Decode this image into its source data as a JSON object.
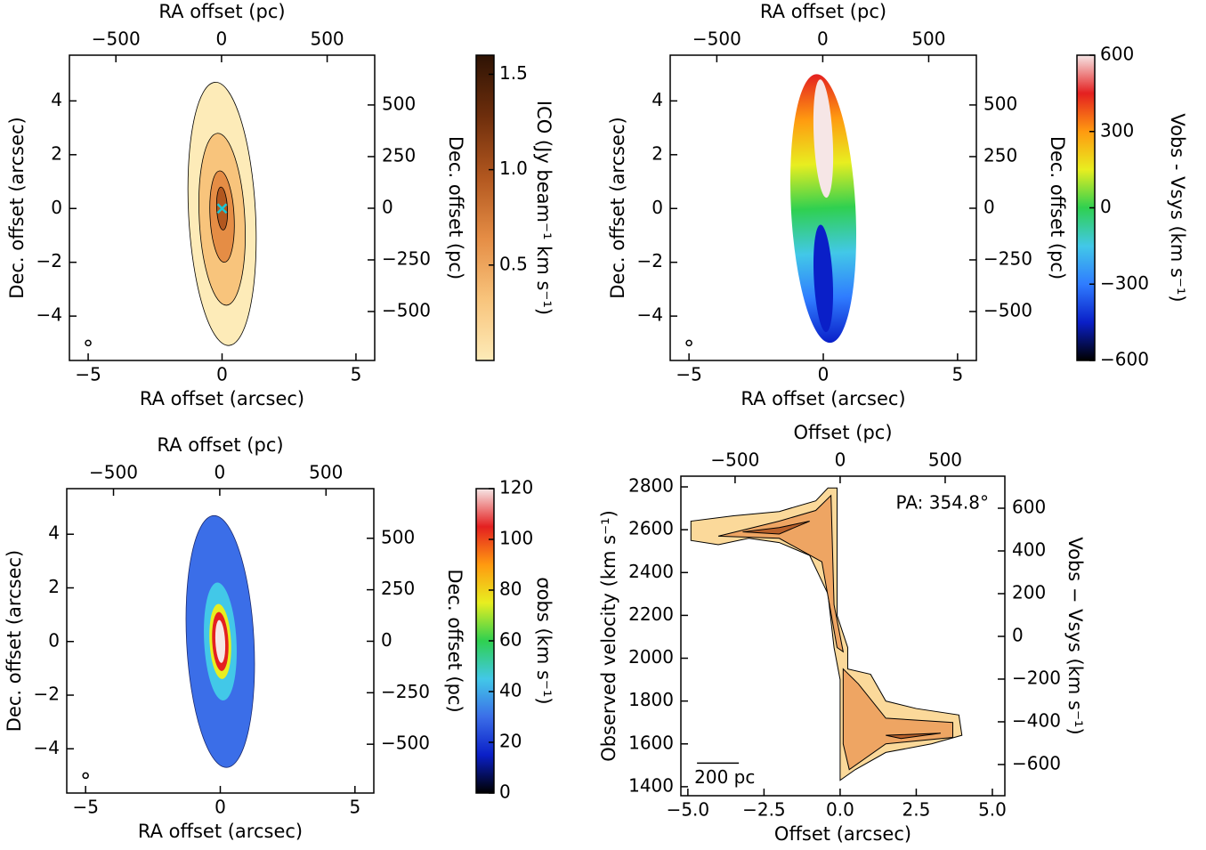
{
  "chart_data": [
    {
      "type": "intensity",
      "xlabel": "RA offset (arcsec)",
      "xlim": [
        -5.7,
        5.7
      ],
      "xticks": [
        {
          "value": -5,
          "label": "−5"
        },
        0,
        5
      ],
      "x2label": "RA offset (pc)",
      "x2lim": [
        -720,
        725
      ],
      "x2ticks": [
        {
          "value": -500,
          "label": "−500"
        },
        0,
        500
      ],
      "ylabel": "Dec. offset (arcsec)",
      "ylim": [
        -5.65,
        5.7
      ],
      "yticks": [
        {
          "value": -4,
          "label": "−4"
        },
        {
          "value": -2,
          "label": "−2"
        },
        0,
        2,
        4
      ],
      "y2label": "Dec. offset (pc)",
      "y2lim": [
        -737,
        741
      ],
      "y2ticks": [
        {
          "value": -500,
          "label": "−500"
        },
        {
          "value": -250,
          "label": "−250"
        },
        0,
        250,
        500
      ],
      "colorbar": {
        "label": "ICO (Jy beam⁻¹ km s⁻¹)",
        "lim": [
          0,
          1.6
        ],
        "ticks": [
          0.5,
          {
            "value": 1,
            "label": "1.0"
          },
          1.5
        ],
        "colors": [
          "#fdebb8",
          "#f8c47c",
          "#e58d45",
          "#b2571f",
          "#6e2e0c",
          "#2e1304"
        ]
      }
    },
    {
      "type": "velocity",
      "xlabel": "RA offset (arcsec)",
      "xlim": [
        -5.7,
        5.7
      ],
      "xticks": [
        {
          "value": -5,
          "label": "−5"
        },
        0,
        5
      ],
      "x2label": "RA offset (pc)",
      "x2lim": [
        -720,
        725
      ],
      "x2ticks": [
        {
          "value": -500,
          "label": "−500"
        },
        0,
        500
      ],
      "ylabel": "Dec. offset (arcsec)",
      "ylim": [
        -5.65,
        5.7
      ],
      "yticks": [
        {
          "value": -4,
          "label": "−4"
        },
        {
          "value": -2,
          "label": "−2"
        },
        0,
        2,
        4
      ],
      "y2label": "Dec. offset (pc)",
      "y2lim": [
        -737,
        741
      ],
      "y2ticks": [
        {
          "value": -500,
          "label": "−500"
        },
        {
          "value": -250,
          "label": "−250"
        },
        0,
        250,
        500
      ],
      "colorbar": {
        "label": "Vobs - Vsys (km s⁻¹)",
        "lim": [
          -600,
          600
        ],
        "ticks": [
          {
            "value": -600,
            "label": "−600"
          },
          {
            "value": -300,
            "label": "−300"
          },
          0,
          300,
          600
        ],
        "colors": [
          "#000000",
          "#0a1fc8",
          "#2f7cff",
          "#42c8e8",
          "#2fd050",
          "#e8ee20",
          "#ff9a10",
          "#e42020",
          "#f6e6e6"
        ]
      }
    },
    {
      "type": "dispersion",
      "xlabel": "RA offset (arcsec)",
      "xlim": [
        -5.7,
        5.7
      ],
      "xticks": [
        {
          "value": -5,
          "label": "−5"
        },
        0,
        5
      ],
      "x2label": "RA offset (pc)",
      "x2lim": [
        -720,
        725
      ],
      "x2ticks": [
        {
          "value": -500,
          "label": "−500"
        },
        0,
        500
      ],
      "ylabel": "Dec. offset (arcsec)",
      "ylim": [
        -5.65,
        5.7
      ],
      "yticks": [
        {
          "value": -4,
          "label": "−4"
        },
        {
          "value": -2,
          "label": "−2"
        },
        0,
        2,
        4
      ],
      "y2label": "Dec. offset (pc)",
      "y2lim": [
        -737,
        741
      ],
      "y2ticks": [
        {
          "value": -500,
          "label": "−500"
        },
        {
          "value": -250,
          "label": "−250"
        },
        0,
        250,
        500
      ],
      "colorbar": {
        "label": "σobs (km s⁻¹)",
        "lim": [
          0,
          120
        ],
        "ticks": [
          0,
          20,
          40,
          60,
          80,
          100,
          120
        ],
        "colors": [
          "#000000",
          "#0a1fc8",
          "#3b6ee8",
          "#42c8e8",
          "#2fd050",
          "#e8ee20",
          "#ff9a10",
          "#e42020",
          "#f6e6e6"
        ]
      }
    },
    {
      "type": "pv",
      "xlabel": "Offset (arcsec)",
      "xlim": [
        -5.23,
        5.41
      ],
      "xticks": [
        {
          "value": -5,
          "label": "−5.0"
        },
        {
          "value": -2.5,
          "label": "−2.5"
        },
        {
          "value": 0,
          "label": "0.0"
        },
        2.5,
        {
          "value": 5,
          "label": "5.0"
        }
      ],
      "x2label": "Offset (pc)",
      "x2lim": [
        -758,
        784
      ],
      "x2ticks": [
        {
          "value": -500,
          "label": "−500"
        },
        0,
        500
      ],
      "ylabel": "Observed velocity (km s⁻¹)",
      "ylim": [
        1358,
        2850
      ],
      "yticks": [
        1400,
        1600,
        1800,
        2000,
        2200,
        2400,
        2600,
        2800
      ],
      "y2label": "Vobs − Vsys (km s⁻¹)",
      "y2lim": [
        -746,
        750
      ],
      "y2ticks": [
        {
          "value": -600,
          "label": "−600"
        },
        {
          "value": -400,
          "label": "−400"
        },
        {
          "value": -200,
          "label": "−200"
        },
        0,
        200,
        400,
        600
      ],
      "annotation": "PA: 354.8°",
      "scalebar": "200 pc"
    }
  ]
}
